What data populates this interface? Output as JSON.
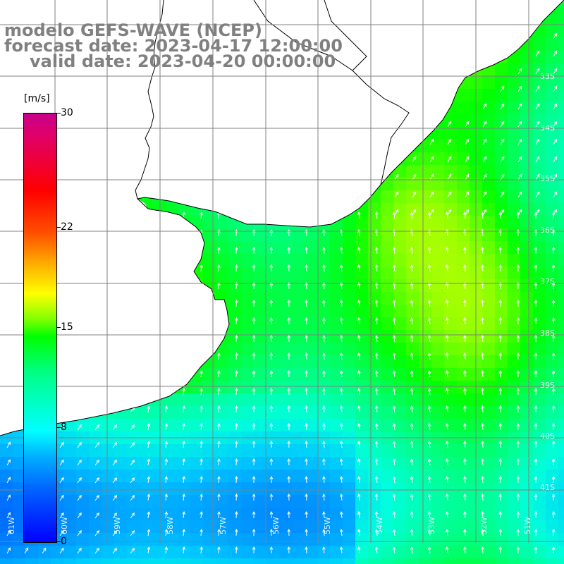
{
  "title": {
    "line1": "modelo GEFS-WAVE (NCEP)",
    "line2": "forecast date: 2023-04-17 12:00:00",
    "line3": "valid date: 2023-04-20 00:00:00"
  },
  "colorbar": {
    "unit": "[m/s]",
    "ticks": [
      "30",
      "22",
      "15",
      "8",
      "0"
    ],
    "tick_values": [
      30,
      22,
      15,
      8,
      0
    ],
    "range": [
      0,
      30
    ]
  },
  "axes": {
    "lat_labels": [
      "33S",
      "34S",
      "35S",
      "36S",
      "37S",
      "38S",
      "39S",
      "40S",
      "41S"
    ],
    "lon_labels": [
      "61W",
      "60W",
      "59W",
      "58W",
      "57W",
      "56W",
      "55W",
      "54W",
      "53W",
      "52W",
      "51W"
    ],
    "grid": true
  },
  "field": {
    "variable": "wind speed",
    "arrow_color": "#ffffff",
    "land_color": "#ffffff",
    "coast_color": "#000000"
  }
}
